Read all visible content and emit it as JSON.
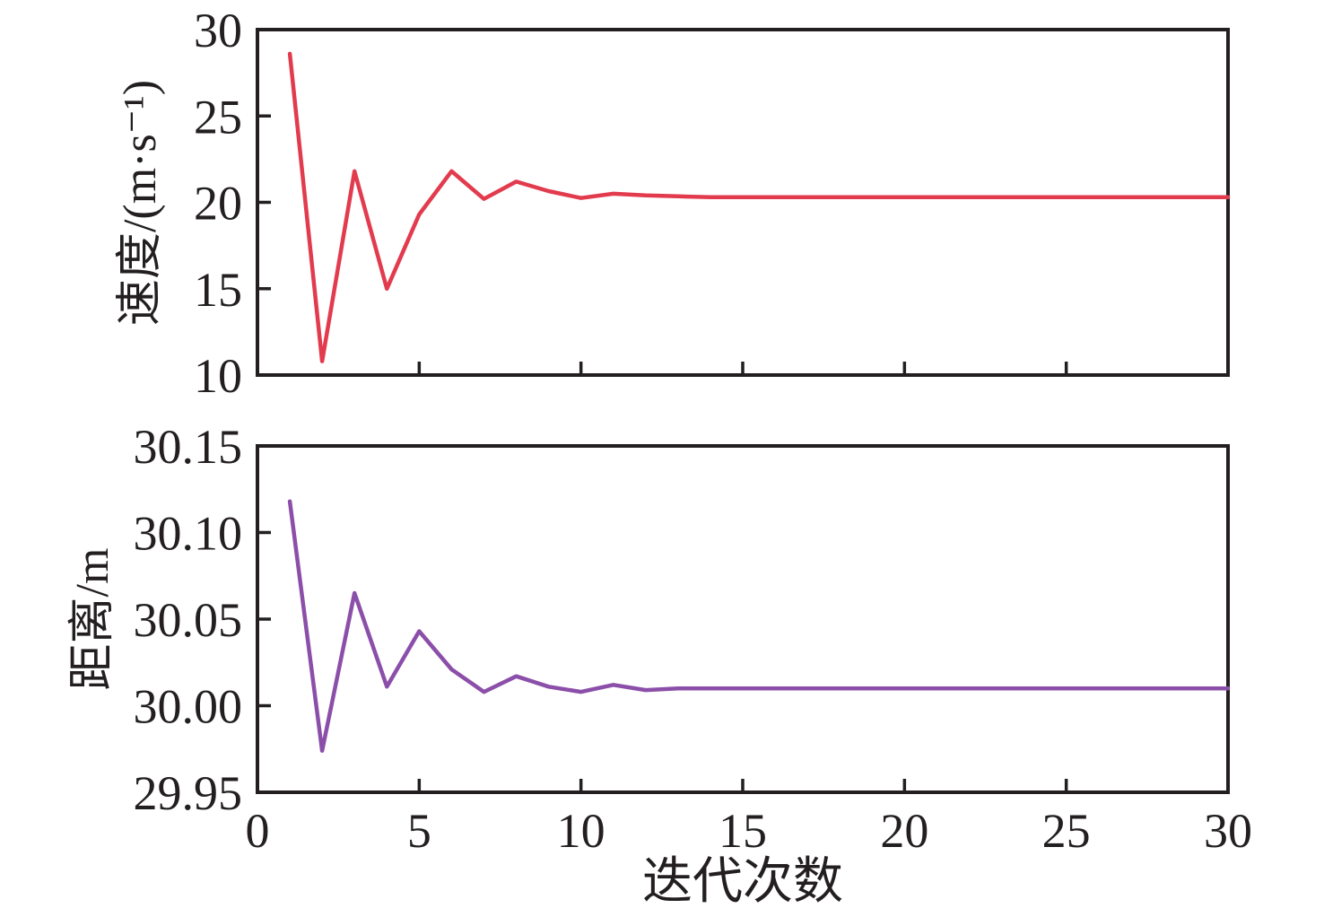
{
  "figure": {
    "background": "#ffffff",
    "axis_color": "#231f20"
  },
  "chart_data": [
    {
      "type": "line",
      "title": "",
      "ylabel": "速度/(m·s⁻¹)",
      "xlabel": "",
      "grid": false,
      "legend": null,
      "xlim": [
        0,
        30
      ],
      "ylim": [
        10,
        30
      ],
      "xtick_values": [
        0,
        5,
        10,
        15,
        20,
        25,
        30
      ],
      "xtick_labels": [
        "0",
        "5",
        "10",
        "15",
        "20",
        "25",
        "30"
      ],
      "xtick_labels_visible": false,
      "ytick_values": [
        10,
        15,
        20,
        25,
        30
      ],
      "ytick_labels": [
        "10",
        "15",
        "20",
        "25",
        "30"
      ],
      "x": [
        1,
        2,
        3,
        4,
        5,
        6,
        7,
        8,
        9,
        10,
        11,
        12,
        13,
        14,
        15,
        16,
        17,
        18,
        19,
        20,
        21,
        22,
        23,
        24,
        25,
        26,
        27,
        28,
        29,
        30
      ],
      "series": [
        {
          "name": "速度",
          "color": "#e23b4e",
          "values": [
            28.6,
            10.8,
            21.8,
            15.0,
            19.3,
            21.8,
            20.2,
            21.2,
            20.65,
            20.25,
            20.5,
            20.4,
            20.35,
            20.3,
            20.3,
            20.3,
            20.3,
            20.3,
            20.3,
            20.3,
            20.3,
            20.3,
            20.3,
            20.3,
            20.3,
            20.3,
            20.3,
            20.3,
            20.3,
            20.3
          ]
        }
      ]
    },
    {
      "type": "line",
      "title": "",
      "ylabel": "距离/m",
      "xlabel": "迭代次数",
      "grid": false,
      "legend": null,
      "xlim": [
        0,
        30
      ],
      "ylim": [
        29.95,
        30.15
      ],
      "xtick_values": [
        0,
        5,
        10,
        15,
        20,
        25,
        30
      ],
      "xtick_labels": [
        "0",
        "5",
        "10",
        "15",
        "20",
        "25",
        "30"
      ],
      "xtick_labels_visible": true,
      "ytick_values": [
        29.95,
        30.0,
        30.05,
        30.1,
        30.15
      ],
      "ytick_labels": [
        "29.95",
        "30.00",
        "30.05",
        "30.10",
        "30.15"
      ],
      "x": [
        1,
        2,
        3,
        4,
        5,
        6,
        7,
        8,
        9,
        10,
        11,
        12,
        13,
        14,
        15,
        16,
        17,
        18,
        19,
        20,
        21,
        22,
        23,
        24,
        25,
        26,
        27,
        28,
        29,
        30
      ],
      "series": [
        {
          "name": "距离",
          "color": "#8b4fa9",
          "values": [
            30.118,
            29.974,
            30.065,
            30.011,
            30.043,
            30.021,
            30.008,
            30.017,
            30.011,
            30.008,
            30.012,
            30.009,
            30.01,
            30.01,
            30.01,
            30.01,
            30.01,
            30.01,
            30.01,
            30.01,
            30.01,
            30.01,
            30.01,
            30.01,
            30.01,
            30.01,
            30.01,
            30.01,
            30.01,
            30.01
          ]
        }
      ]
    }
  ]
}
